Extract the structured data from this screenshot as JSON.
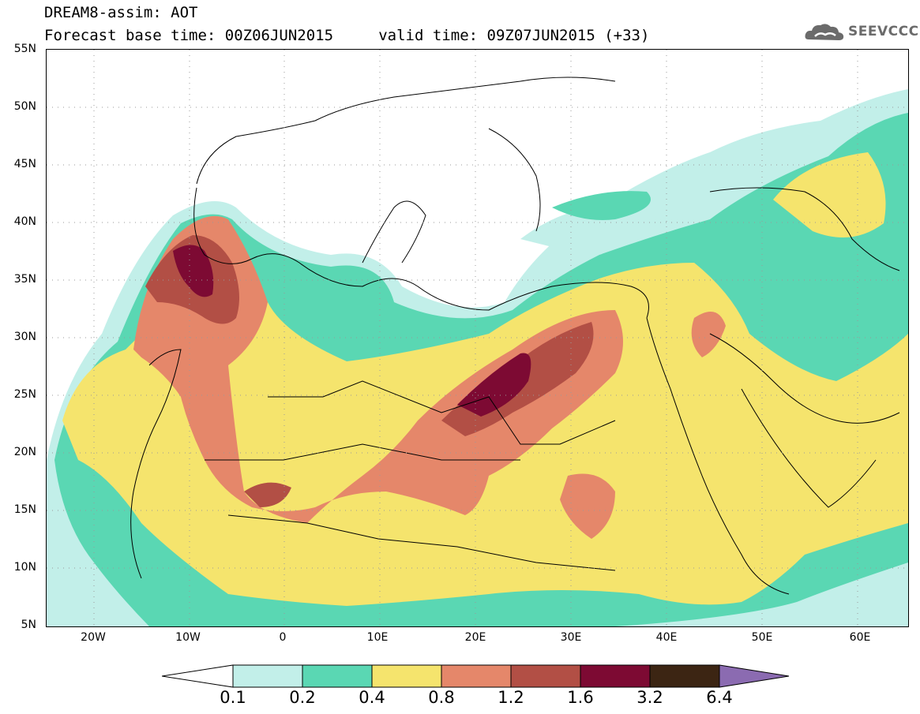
{
  "header": {
    "line1": "DREAM8-assim: AOT",
    "line2": "Forecast base time: 00Z06JUN2015     valid time: 09Z07JUN2015 (+33)",
    "logo": "SEEVCCC",
    "logo_icon": "cloud-icon"
  },
  "axes": {
    "lat_labels": [
      "55N",
      "50N",
      "45N",
      "40N",
      "35N",
      "30N",
      "25N",
      "20N",
      "15N",
      "10N",
      "5N"
    ],
    "lon_labels": [
      "20W",
      "10W",
      "0",
      "10E",
      "20E",
      "30E",
      "40E",
      "50E",
      "60E"
    ]
  },
  "legend": {
    "levels": [
      "0.1",
      "0.2",
      "0.4",
      "0.8",
      "1.2",
      "1.6",
      "3.2",
      "6.4"
    ],
    "colors": [
      "#ffffff",
      "#c2efe9",
      "#5ad7b3",
      "#f5e46d",
      "#e5876a",
      "#b24f45",
      "#7d0a33",
      "#3c2513",
      "#8b6bb1"
    ]
  },
  "map": {
    "region": "North Africa, Mediterranean, Middle East",
    "lon_range": [
      -25,
      65
    ],
    "lat_range": [
      5,
      55
    ],
    "land_color": "#ffffff",
    "border_color": "#000000",
    "grid_dotted": true
  }
}
